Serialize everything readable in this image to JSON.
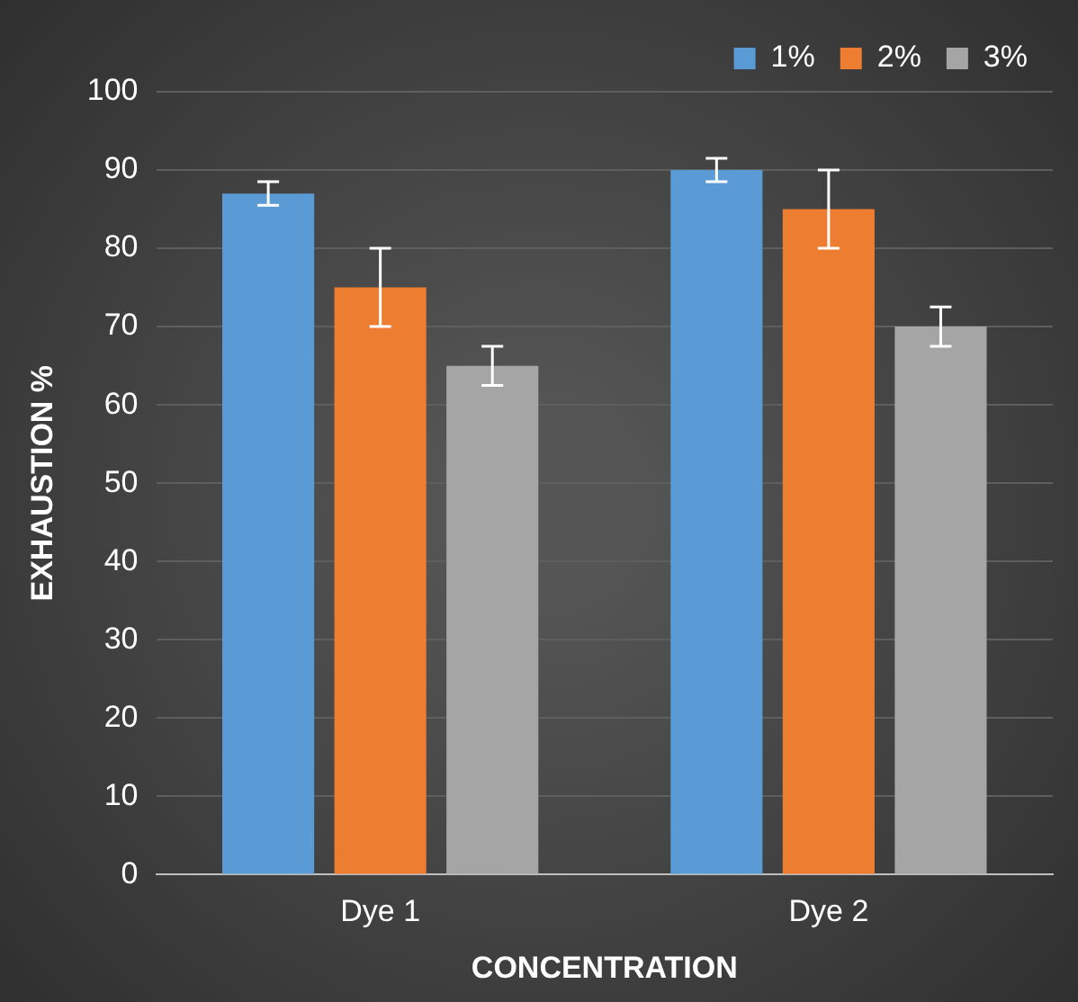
{
  "chart_data": {
    "type": "bar",
    "xlabel": "CONCENTRATION",
    "ylabel": "EXHAUSTION %",
    "categories": [
      "Dye 1",
      "Dye 2"
    ],
    "series": [
      {
        "name": "1%",
        "color": "#5b9bd5",
        "values": [
          87,
          90
        ],
        "errors": [
          1.5,
          1.5
        ]
      },
      {
        "name": "2%",
        "color": "#ed7d31",
        "values": [
          75,
          85
        ],
        "errors": [
          5,
          5
        ]
      },
      {
        "name": "3%",
        "color": "#a5a5a5",
        "values": [
          65,
          70
        ],
        "errors": [
          2.5,
          2.5
        ]
      }
    ],
    "ylim": [
      0,
      100
    ],
    "yticks": [
      0,
      10,
      20,
      30,
      40,
      50,
      60,
      70,
      80,
      90,
      100
    ],
    "grid": "y",
    "legend": "top right"
  }
}
